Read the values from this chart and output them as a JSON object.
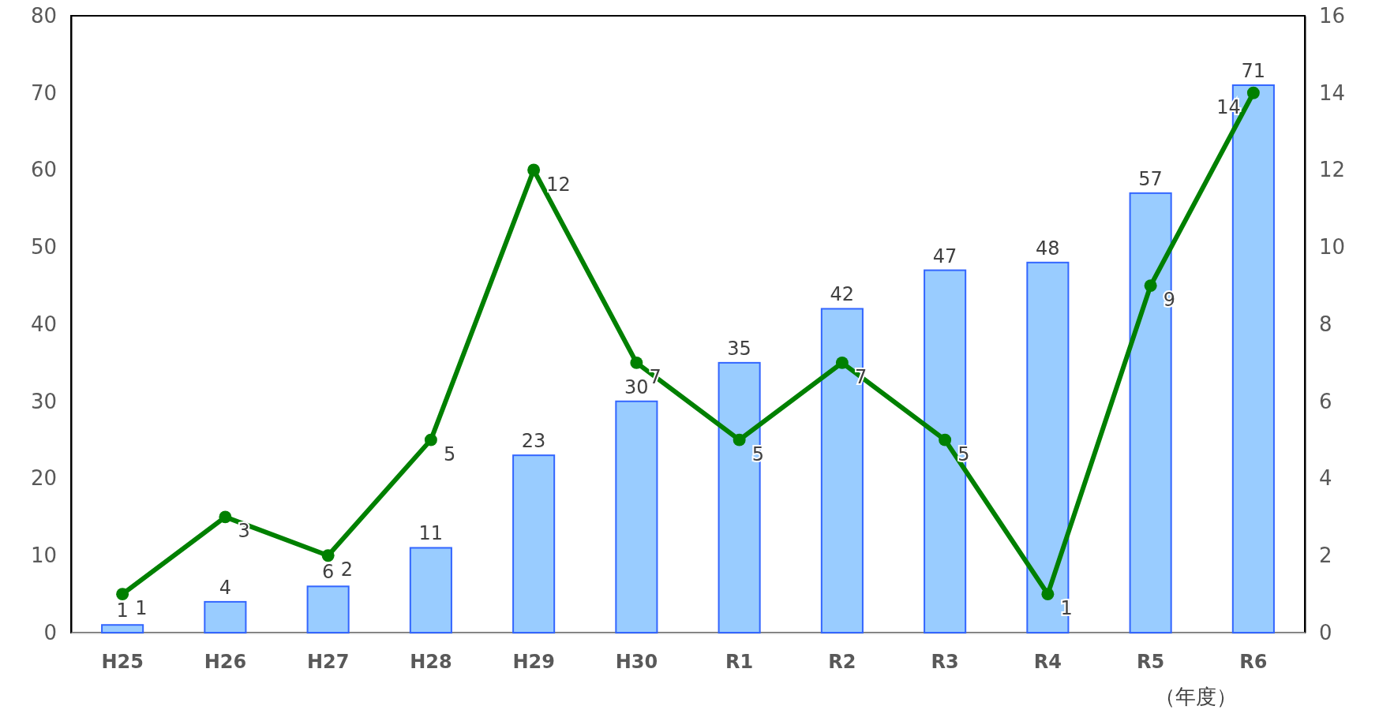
{
  "chart_data": {
    "type": "bar",
    "xlabel": "（年度）",
    "categories": [
      "H25",
      "H26",
      "H27",
      "H28",
      "H29",
      "H30",
      "R1",
      "R2",
      "R3",
      "R4",
      "R5",
      "R6"
    ],
    "series": [
      {
        "color": "#99ccff",
        "values": [
          1,
          4,
          6,
          11,
          23,
          30,
          35,
          42,
          47,
          48,
          57,
          71
        ]
      },
      {
        "type": "line",
        "axis": "y2",
        "color": "#008000",
        "marker": "circle",
        "values": [
          1,
          3,
          2,
          5,
          12,
          7,
          5,
          7,
          5,
          1,
          9,
          14
        ]
      }
    ],
    "ylim": [
      0,
      80
    ],
    "yticks": [
      0,
      10,
      20,
      30,
      40,
      50,
      60,
      70,
      80
    ],
    "y2lim": [
      0,
      16
    ],
    "y2ticks": [
      0,
      2,
      4,
      6,
      8,
      10,
      12,
      14,
      16
    ],
    "data_labels": true,
    "grid": false
  }
}
